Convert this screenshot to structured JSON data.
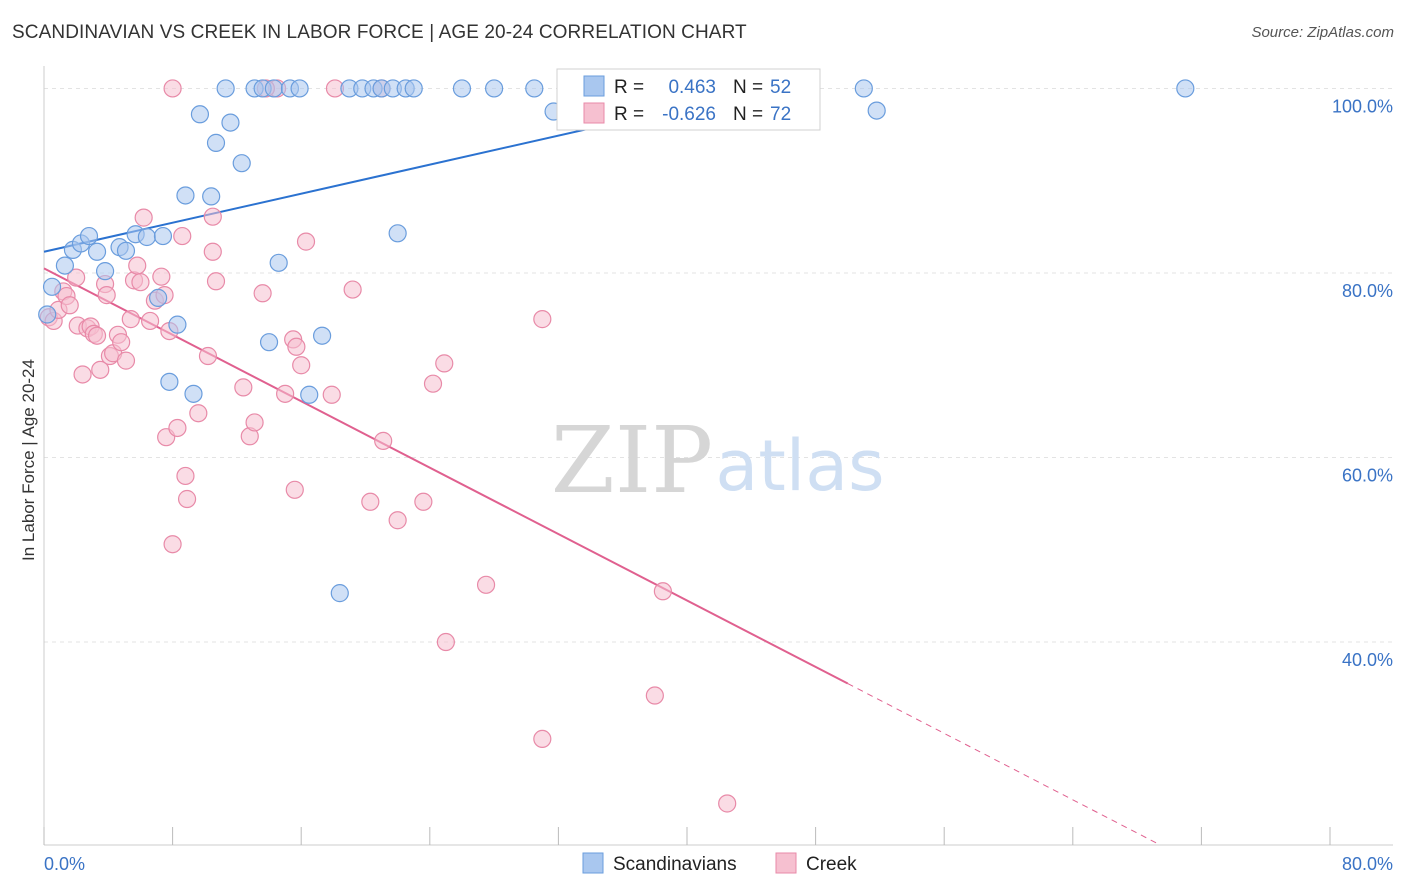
{
  "header": {
    "title": "SCANDINAVIAN VS CREEK IN LABOR FORCE | AGE 20-24 CORRELATION CHART",
    "source": "Source: ZipAtlas.com"
  },
  "watermark": {
    "zip": "ZIP",
    "atlas": "atlas"
  },
  "colors": {
    "blue_fill": "#a9c7ef",
    "blue_stroke": "#6a9ddd",
    "blue_line": "#2b72d0",
    "pink_fill": "#f6c0d0",
    "pink_stroke": "#e88aa8",
    "pink_line": "#e0608f",
    "grid": "#e3e3e3",
    "axis_text": "#3a73c5"
  },
  "stats_box": {
    "rows": [
      {
        "r_label": "R =",
        "r_value": "0.463",
        "n_label": "N =",
        "n_value": "52"
      },
      {
        "r_label": "R =",
        "r_value": "-0.626",
        "n_label": "N =",
        "n_value": "72"
      }
    ]
  },
  "chart_data": {
    "type": "scatter",
    "title": "SCANDINAVIAN VS CREEK IN LABOR FORCE | AGE 20-24 CORRELATION CHART",
    "xlabel": "",
    "ylabel": "In Labor Force | Age 20-24",
    "xlim": [
      0,
      80
    ],
    "ylim": [
      18,
      102
    ],
    "x_tick_labels": [
      "0.0%",
      "80.0%"
    ],
    "y_ticks": [
      40,
      60,
      80,
      100
    ],
    "y_tick_labels": [
      "40.0%",
      "60.0%",
      "80.0%",
      "100.0%"
    ],
    "grid": true,
    "legend_position": "bottom",
    "series": [
      {
        "name": "Scandinavians",
        "color": "#a9c7ef",
        "trend": {
          "x": [
            0,
            45
          ],
          "y": [
            82.3,
            100
          ]
        },
        "points": [
          [
            0.2,
            75.5
          ],
          [
            0.5,
            78.5
          ],
          [
            1.3,
            80.8
          ],
          [
            1.8,
            82.5
          ],
          [
            2.3,
            83.2
          ],
          [
            2.8,
            84.0
          ],
          [
            3.3,
            82.3
          ],
          [
            3.8,
            80.2
          ],
          [
            4.7,
            82.8
          ],
          [
            5.1,
            82.4
          ],
          [
            5.7,
            84.2
          ],
          [
            6.4,
            83.9
          ],
          [
            7.1,
            77.3
          ],
          [
            7.4,
            84.0
          ],
          [
            7.8,
            68.2
          ],
          [
            8.3,
            74.4
          ],
          [
            8.8,
            88.4
          ],
          [
            9.3,
            66.9
          ],
          [
            9.7,
            97.2
          ],
          [
            10.4,
            88.3
          ],
          [
            10.7,
            94.1
          ],
          [
            11.3,
            100
          ],
          [
            11.6,
            96.3
          ],
          [
            12.3,
            91.9
          ],
          [
            13.1,
            100
          ],
          [
            13.6,
            100
          ],
          [
            14.3,
            100
          ],
          [
            14.0,
            72.5
          ],
          [
            14.6,
            81.1
          ],
          [
            15.3,
            100
          ],
          [
            15.9,
            100
          ],
          [
            16.5,
            66.8
          ],
          [
            17.3,
            73.2
          ],
          [
            18.4,
            45.3
          ],
          [
            19.0,
            100
          ],
          [
            19.8,
            100
          ],
          [
            20.5,
            100
          ],
          [
            21.0,
            100
          ],
          [
            21.7,
            100
          ],
          [
            22.0,
            84.3
          ],
          [
            22.5,
            100
          ],
          [
            23.0,
            100
          ],
          [
            26.0,
            100
          ],
          [
            28.0,
            100
          ],
          [
            30.5,
            100
          ],
          [
            31.7,
            97.5
          ],
          [
            32.5,
            100
          ],
          [
            34.0,
            100
          ],
          [
            38.5,
            100
          ],
          [
            51.0,
            100
          ],
          [
            51.8,
            97.6
          ],
          [
            71.0,
            100
          ]
        ]
      },
      {
        "name": "Creek",
        "color": "#f6c0d0",
        "trend": {
          "x": [
            0,
            50
          ],
          "y": [
            80.5,
            35.5
          ]
        },
        "points": [
          [
            0.3,
            75.2
          ],
          [
            0.6,
            74.8
          ],
          [
            0.9,
            76.0
          ],
          [
            1.2,
            78.0
          ],
          [
            1.4,
            77.5
          ],
          [
            1.6,
            76.5
          ],
          [
            2.0,
            79.5
          ],
          [
            2.1,
            74.3
          ],
          [
            2.4,
            69.0
          ],
          [
            2.7,
            74.0
          ],
          [
            2.9,
            74.2
          ],
          [
            3.1,
            73.4
          ],
          [
            3.3,
            73.2
          ],
          [
            3.5,
            69.5
          ],
          [
            3.8,
            78.8
          ],
          [
            3.9,
            77.6
          ],
          [
            4.1,
            71.0
          ],
          [
            4.3,
            71.3
          ],
          [
            4.6,
            73.3
          ],
          [
            4.8,
            72.5
          ],
          [
            5.1,
            70.5
          ],
          [
            5.4,
            75.0
          ],
          [
            5.6,
            79.2
          ],
          [
            5.8,
            80.8
          ],
          [
            6.0,
            79.0
          ],
          [
            6.2,
            86.0
          ],
          [
            6.6,
            74.8
          ],
          [
            6.9,
            77.0
          ],
          [
            7.3,
            79.6
          ],
          [
            7.5,
            77.6
          ],
          [
            7.6,
            62.2
          ],
          [
            7.8,
            73.7
          ],
          [
            8.0,
            50.6
          ],
          [
            8.3,
            63.2
          ],
          [
            8.6,
            84.0
          ],
          [
            8.8,
            58.0
          ],
          [
            8.9,
            55.5
          ],
          [
            9.6,
            64.8
          ],
          [
            10.2,
            71.0
          ],
          [
            10.5,
            86.1
          ],
          [
            10.5,
            82.3
          ],
          [
            10.7,
            79.1
          ],
          [
            12.4,
            67.6
          ],
          [
            12.8,
            62.3
          ],
          [
            13.1,
            63.8
          ],
          [
            13.6,
            77.8
          ],
          [
            14.5,
            100
          ],
          [
            15.0,
            66.9
          ],
          [
            15.5,
            72.8
          ],
          [
            15.6,
            56.5
          ],
          [
            15.7,
            72.0
          ],
          [
            16.0,
            70.0
          ],
          [
            16.3,
            83.4
          ],
          [
            17.9,
            66.8
          ],
          [
            18.1,
            100
          ],
          [
            19.2,
            78.2
          ],
          [
            20.3,
            55.2
          ],
          [
            21.1,
            61.8
          ],
          [
            22.0,
            53.2
          ],
          [
            23.6,
            55.2
          ],
          [
            24.2,
            68.0
          ],
          [
            24.9,
            70.2
          ],
          [
            25.0,
            40.0
          ],
          [
            27.5,
            46.2
          ],
          [
            31.0,
            75.0
          ],
          [
            31.0,
            29.5
          ],
          [
            38.5,
            45.5
          ],
          [
            38.0,
            34.2
          ],
          [
            42.5,
            22.5
          ],
          [
            8.0,
            100
          ],
          [
            21.0,
            100
          ],
          [
            13.8,
            100
          ]
        ]
      }
    ]
  }
}
